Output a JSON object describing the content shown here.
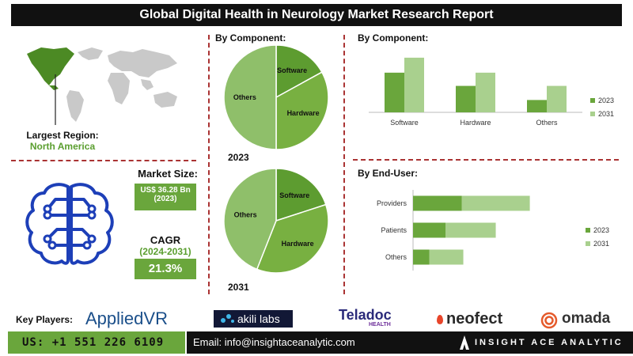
{
  "header": {
    "title": "Global Digital Health in Neurology Market Research Report"
  },
  "region": {
    "label": "Largest Region:",
    "value": "North America"
  },
  "market_size": {
    "label": "Market Size:",
    "value": "US$ 36.28 Bn",
    "year": "(2023)"
  },
  "cagr": {
    "label": "CAGR",
    "period": "(2024-2031)",
    "value": "21.3%"
  },
  "key_players": {
    "label": "Key Players:",
    "names": [
      "AppliedVR",
      "akili labs",
      "Teladoc",
      "neofect",
      "omada"
    ],
    "teladoc_sub": "HEALTH"
  },
  "footer": {
    "phone": "US: +1 551 226 6109",
    "email": "Email: info@insightaceanalytic.com",
    "brand": "INSIGHT ACE ANALYTIC"
  },
  "colors": {
    "dark_green": "#6aa63c",
    "light_green": "#a9d08e",
    "pie_dark": "#5d9c30",
    "pie_mid": "#78b041",
    "pie_light": "#8fbf6a",
    "accent_red": "#a33333"
  },
  "chart_data": [
    {
      "type": "pie",
      "title": "By Component:",
      "label": "2023",
      "categories": [
        "Software",
        "Hardware",
        "Others"
      ],
      "values": [
        17,
        33,
        50
      ]
    },
    {
      "type": "pie",
      "label": "2031",
      "categories": [
        "Software",
        "Hardware",
        "Others"
      ],
      "values": [
        20,
        36,
        44
      ]
    },
    {
      "type": "bar",
      "title": "By Component:",
      "categories": [
        "Software",
        "Hardware",
        "Others"
      ],
      "series": [
        {
          "name": "2023",
          "values": [
            45,
            30,
            14
          ]
        },
        {
          "name": "2031",
          "values": [
            62,
            45,
            30
          ]
        }
      ],
      "ylim": [
        0,
        70
      ],
      "legend": "right"
    },
    {
      "type": "bar",
      "orientation": "horizontal",
      "stacked": true,
      "title": "By End-User:",
      "categories": [
        "Providers",
        "Patients",
        "Others"
      ],
      "series": [
        {
          "name": "2023",
          "values": [
            30,
            20,
            10
          ]
        },
        {
          "name": "2031",
          "values": [
            42,
            31,
            21
          ]
        }
      ],
      "xlim": [
        0,
        80
      ],
      "legend": "right"
    }
  ]
}
